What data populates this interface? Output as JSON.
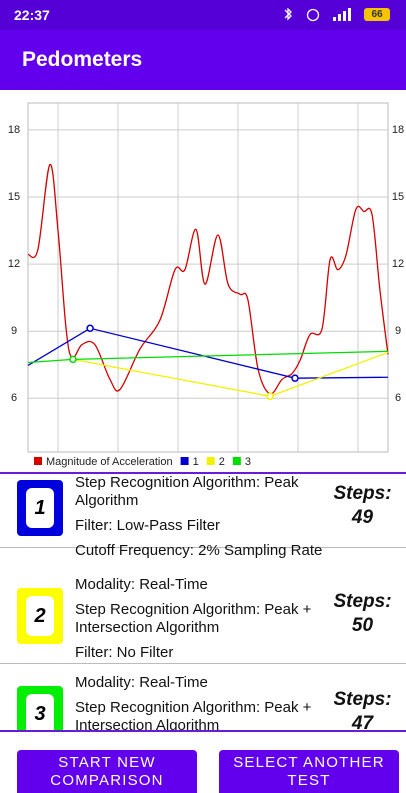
{
  "status_bar": {
    "time": "22:37",
    "battery": "66"
  },
  "app_bar": {
    "title": "Pedometers"
  },
  "chart": {
    "type": "line",
    "xlim": [
      0,
      12
    ],
    "ylim": [
      3.6,
      19.2
    ],
    "yticks": [
      6,
      9,
      12,
      15,
      18
    ],
    "grid": true,
    "series": [
      {
        "name": "Magnitude of Acceleration",
        "color": "#d40000",
        "x": [
          0,
          0.33,
          0.73,
          1,
          1.27,
          1.47,
          1.8,
          2.23,
          2.73,
          3.07,
          3.73,
          4.4,
          4.9,
          5.23,
          5.6,
          5.9,
          6.33,
          6.67,
          7.07,
          7.33,
          7.67,
          8.07,
          8.47,
          8.8,
          9.07,
          9.4,
          9.8,
          10.07,
          10.33,
          10.6,
          10.93,
          11.2,
          11.47,
          11.73,
          12
        ],
        "values": [
          12.43,
          12.65,
          16.45,
          13.5,
          9.1,
          7.8,
          8.4,
          8.4,
          6.85,
          6.4,
          8.2,
          9.5,
          11.75,
          11.75,
          13.55,
          11.1,
          13.3,
          11.1,
          10.65,
          10.4,
          7.3,
          6.2,
          6.85,
          7.1,
          7.7,
          8.85,
          9.1,
          12.2,
          11.75,
          12.4,
          14.45,
          14.35,
          14.2,
          10.85,
          7.96
        ]
      },
      {
        "name": "1",
        "color": "#0000cc",
        "x": [
          0,
          2.07,
          8.9,
          12
        ],
        "values": [
          7.47,
          9.13,
          6.9,
          6.94
        ]
      },
      {
        "name": "2",
        "color": "#f2f200",
        "x": [
          1.5,
          8.07,
          12
        ],
        "values": [
          7.74,
          6.09,
          8.05
        ]
      },
      {
        "name": "3",
        "color": "#00dd00",
        "x": [
          0,
          1.5,
          12
        ],
        "values": [
          7.6,
          7.74,
          8.1
        ]
      }
    ]
  },
  "results": [
    {
      "badge": "1",
      "color": "#0000dd",
      "lines": [
        "Step Recognition Algorithm: Peak Algorithm",
        "Filter: Low-Pass Filter",
        "Cutoff Frequency: 2% Sampling Rate"
      ],
      "steps_label": "Steps:",
      "steps": 49
    },
    {
      "badge": "2",
      "color": "#ffff00",
      "lines": [
        "Modality: Real-Time",
        "Step Recognition Algorithm: Peak + Intersection Algorithm",
        "Filter: No Filter"
      ],
      "steps_label": "Steps:",
      "steps": 50
    },
    {
      "badge": "3",
      "color": "#00ee00",
      "lines": [
        "Modality: Real-Time",
        "Step Recognition Algorithm: Peak + Intersection Algorithm"
      ],
      "steps_label": "Steps:",
      "steps": 47
    }
  ],
  "buttons": [
    "START NEW COMPARISON",
    "SELECT ANOTHER TEST"
  ]
}
